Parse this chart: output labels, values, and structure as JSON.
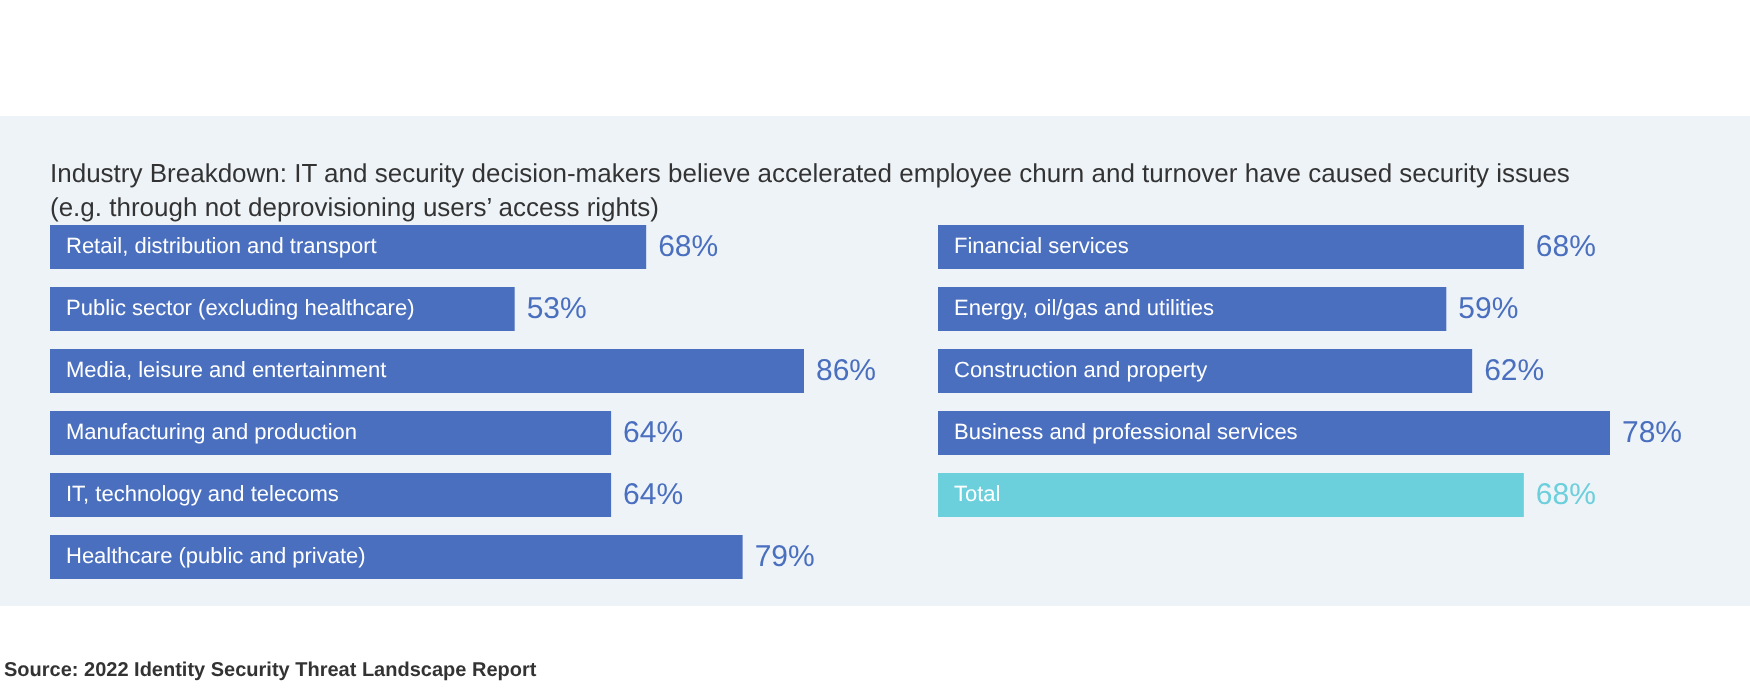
{
  "chart_data": [
    {
      "type": "bar",
      "orientation": "horizontal",
      "title": "Industry Breakdown: IT and security decision-makers believe accelerated employee churn and turnover have caused security issues (e.g. through not deprovisioning users’ access rights)",
      "annotations": [
        "Source: 2022 Identity Security Threat Landscape Report"
      ],
      "categories": [
        "Retail, distribution and transport",
        "Public sector (excluding healthcare)",
        "Media, leisure and entertainment",
        "Manufacturing and production",
        "IT, technology and telecoms",
        "Healthcare (public and private)"
      ],
      "values": [
        68,
        53,
        86,
        64,
        64,
        79
      ],
      "value_labels": [
        "68%",
        "53%",
        "86%",
        "64%",
        "64%",
        "79%"
      ],
      "color": "#4a6fbe",
      "tick_labels": "y"
    },
    {
      "type": "bar",
      "orientation": "horizontal",
      "categories": [
        "Financial services",
        "Energy, oil/gas and utilities",
        "Construction and property",
        "Business and professional services",
        "Total"
      ],
      "values": [
        68,
        59,
        62,
        78,
        68
      ],
      "value_labels": [
        "68%",
        "59%",
        "62%",
        "78%",
        "68%"
      ],
      "colors": [
        "#4a6fbe",
        "#4a6fbe",
        "#4a6fbe",
        "#4a6fbe",
        "#6ccfdc"
      ],
      "tick_labels": "y"
    }
  ]
}
